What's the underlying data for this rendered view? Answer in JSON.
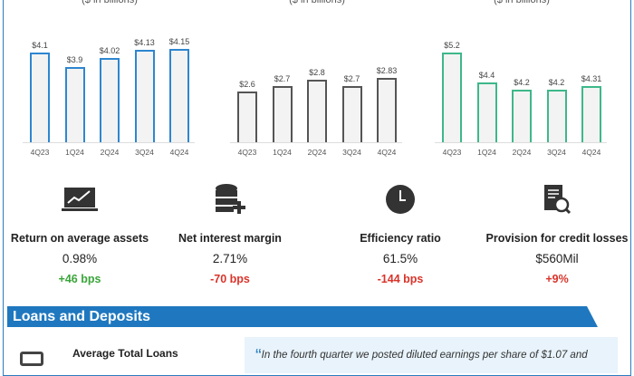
{
  "chart_data": [
    {
      "type": "bar",
      "subtitle": "($ in billions)",
      "categories": [
        "4Q23",
        "1Q24",
        "2Q24",
        "3Q24",
        "4Q24"
      ],
      "values": [
        4.1,
        3.9,
        4.02,
        4.13,
        4.15
      ],
      "labels": [
        "$4.1",
        "$3.9",
        "$4.02",
        "$4.13",
        "$4.15"
      ],
      "ylim": [
        2.86,
        5
      ],
      "color": "#2e86d0"
    },
    {
      "type": "bar",
      "subtitle": "($ in billions)",
      "categories": [
        "4Q23",
        "1Q24",
        "2Q24",
        "3Q24",
        "4Q24"
      ],
      "values": [
        2.6,
        2.7,
        2.8,
        2.7,
        2.83
      ],
      "labels": [
        "$2.6",
        "$2.7",
        "$2.8",
        "$2.7",
        "$2.83"
      ],
      "ylim": [
        1.74,
        4
      ],
      "color": "#555555"
    },
    {
      "type": "bar",
      "subtitle": "($ in billions)",
      "categories": [
        "4Q23",
        "1Q24",
        "2Q24",
        "3Q24",
        "4Q24"
      ],
      "values": [
        5.2,
        4.4,
        4.2,
        4.2,
        4.31
      ],
      "labels": [
        "$5.2",
        "$4.4",
        "$4.2",
        "$4.2",
        "$4.31"
      ],
      "ylim": [
        2.79,
        6
      ],
      "color": "#3db88a"
    }
  ],
  "metrics": [
    {
      "icon": "chart-monitor-icon",
      "label": "Return on average assets",
      "value": "0.98%",
      "change": "+46 bps",
      "change_color": "#3aa53a"
    },
    {
      "icon": "database-plus-icon",
      "label": "Net interest margin",
      "value": "2.71%",
      "change": "-70 bps",
      "change_color": "#d9342b"
    },
    {
      "icon": "clock-icon",
      "label": "Efficiency ratio",
      "value": "61.5%",
      "change": "-144 bps",
      "change_color": "#d9342b"
    },
    {
      "icon": "document-search-icon",
      "label": "Provision for credit losses",
      "value": "$560Mil",
      "change": "+9%",
      "change_color": "#d9342b"
    }
  ],
  "section": {
    "title": "Loans and Deposits",
    "loans_label": "Average Total Loans",
    "quote_mark": "“",
    "quote": "In the fourth quarter we posted diluted earnings per share of $1.07 and"
  }
}
